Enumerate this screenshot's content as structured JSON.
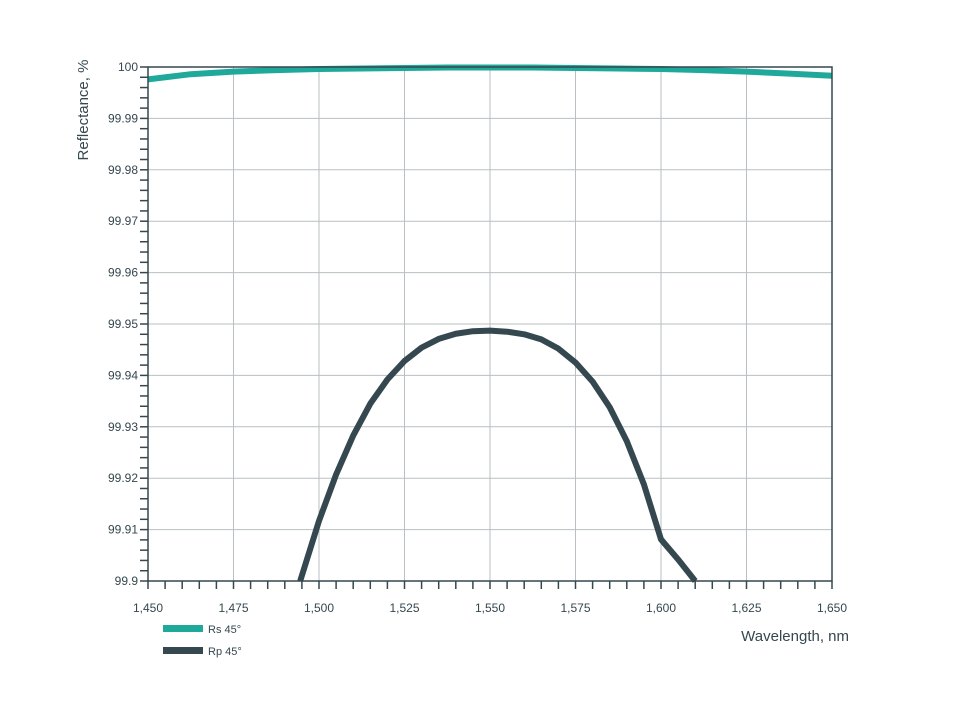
{
  "chart_data": {
    "type": "line",
    "title": "",
    "xlabel": "Wavelength, nm",
    "ylabel": "Reflectance, %",
    "xlim": [
      1450,
      1650
    ],
    "ylim": [
      99.9,
      100
    ],
    "x_ticks": [
      1450,
      1475,
      1500,
      1525,
      1550,
      1575,
      1600,
      1625,
      1650
    ],
    "x_tick_labels": [
      "1,450",
      "1,475",
      "1,500",
      "1,525",
      "1,550",
      "1,575",
      "1,600",
      "1,625",
      "1,650"
    ],
    "y_ticks": [
      99.9,
      99.91,
      99.92,
      99.93,
      99.94,
      99.95,
      99.96,
      99.97,
      99.98,
      99.99,
      100
    ],
    "y_tick_labels": [
      "99.9",
      "99.91",
      "99.92",
      "99.93",
      "99.94",
      "99.95",
      "99.96",
      "99.97",
      "99.98",
      "99.99",
      "100"
    ],
    "grid": true,
    "legend_position": "bottom-left",
    "series": [
      {
        "name": "Rs 45°",
        "color": "#1fa99a",
        "x": [
          1450,
          1462.5,
          1475,
          1487.5,
          1500,
          1512.5,
          1525,
          1537.5,
          1550,
          1562.5,
          1575,
          1587.5,
          1600,
          1612.5,
          1625,
          1637.5,
          1650
        ],
        "y": [
          99.9976,
          99.9986,
          99.9991,
          99.9994,
          99.9996,
          99.9997,
          99.9998,
          99.9999,
          99.9999,
          99.9999,
          99.9998,
          99.9997,
          99.9996,
          99.9994,
          99.9991,
          99.9987,
          99.9983
        ]
      },
      {
        "name": "Rp 45°",
        "color": "#35474f",
        "x": [
          1494.5,
          1500,
          1505,
          1510,
          1515,
          1520,
          1525,
          1530,
          1535,
          1540,
          1545,
          1550,
          1555,
          1560,
          1565,
          1570,
          1575,
          1580,
          1585,
          1590,
          1595,
          1600,
          1605,
          1610
        ],
        "y": [
          99.9,
          99.9117,
          99.9207,
          99.9283,
          99.9345,
          99.9392,
          99.9428,
          99.9454,
          99.9471,
          99.9481,
          99.9486,
          99.9487,
          99.9485,
          99.948,
          99.947,
          99.9452,
          99.9425,
          99.9388,
          99.9338,
          99.9272,
          99.9188,
          99.9081,
          99.9042,
          99.9
        ]
      }
    ]
  }
}
